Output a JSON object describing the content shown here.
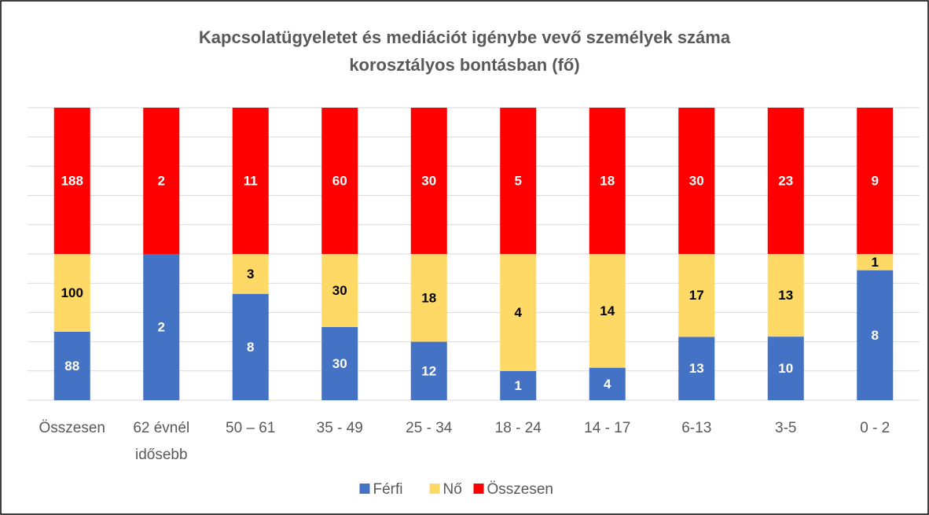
{
  "chart_data": {
    "type": "bar",
    "stacking": "percent",
    "title": "Kapcsolatügyeletet és mediációt igénybe vevő személyek száma korosztályos bontásban (fő)",
    "categories": [
      "Összesen",
      "62 évnél idősebb",
      "50 – 61",
      "35 - 49",
      "25 - 34",
      "18 - 24",
      "14 - 17",
      "6-13",
      "3-5",
      "0 - 2"
    ],
    "series": [
      {
        "name": "Férfi",
        "color": "#4472c4",
        "label_color": "#ffffff",
        "values": [
          88,
          2,
          8,
          30,
          12,
          1,
          4,
          13,
          10,
          8
        ]
      },
      {
        "name": "Nő",
        "color": "#ffd966",
        "label_color": "#000000",
        "values": [
          100,
          0,
          3,
          30,
          18,
          4,
          14,
          17,
          13,
          1
        ]
      },
      {
        "name": "Összesen",
        "color": "#ff0000",
        "label_color": "#ffffff",
        "values": [
          188,
          2,
          11,
          60,
          30,
          5,
          18,
          30,
          23,
          9
        ]
      }
    ],
    "ylim": [
      0,
      100
    ],
    "yticks": [
      0,
      10,
      20,
      30,
      40,
      50,
      60,
      70,
      80,
      90,
      100
    ],
    "grid": true,
    "legend": "bottom"
  }
}
